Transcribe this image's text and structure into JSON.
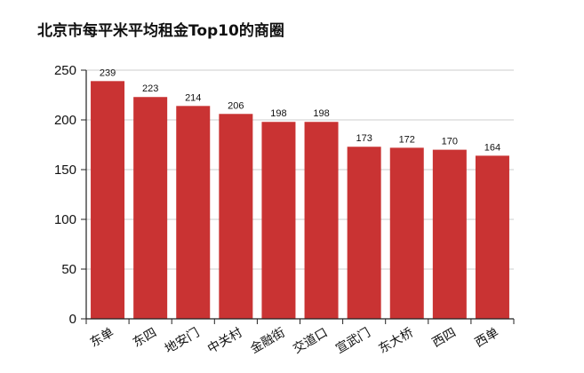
{
  "title": "北京市每平米平均租金Top10的商圈",
  "colors": {
    "bar": "#c93333",
    "grid": "#cccccc",
    "axis": "#222222"
  },
  "chart_data": {
    "type": "bar",
    "title": "北京市每平米平均租金Top10的商圈",
    "xlabel": "",
    "ylabel": "",
    "categories": [
      "东单",
      "东四",
      "地安门",
      "中关村",
      "金融街",
      "交道口",
      "宣武门",
      "东大桥",
      "西四",
      "西单"
    ],
    "values": [
      239,
      223,
      214,
      206,
      198,
      198,
      173,
      172,
      170,
      164
    ],
    "ylim": [
      0,
      250
    ],
    "yticks": [
      0,
      50,
      100,
      150,
      200,
      250
    ],
    "grid": true,
    "legend": null,
    "data_labels": true
  }
}
